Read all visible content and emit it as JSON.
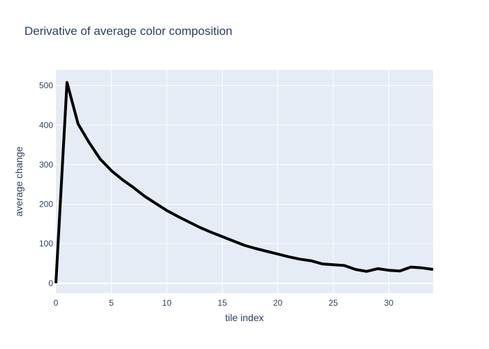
{
  "chart_data": {
    "type": "line",
    "title": "Derivative of average color composition",
    "xlabel": "tile index",
    "ylabel": "average change",
    "xlim": [
      0,
      34
    ],
    "ylim": [
      -25,
      540
    ],
    "x_ticks": [
      0,
      5,
      10,
      15,
      20,
      25,
      30
    ],
    "y_ticks": [
      0,
      100,
      200,
      300,
      400,
      500
    ],
    "grid": true,
    "legend": "none",
    "colors": {
      "plot_bg": "#e5ecf6",
      "grid": "#ffffff",
      "line": "#000000",
      "text": "#2a3f5f"
    },
    "series": [
      {
        "x": [
          0,
          1,
          2,
          3,
          4,
          5,
          6,
          7,
          8,
          9,
          10,
          11,
          12,
          13,
          14,
          15,
          16,
          17,
          18,
          19,
          20,
          21,
          22,
          23,
          24,
          25,
          26,
          27,
          28,
          29,
          30,
          31,
          32,
          33,
          34
        ],
        "values": [
          0,
          508,
          403,
          356,
          314,
          285,
          262,
          242,
          220,
          202,
          184,
          169,
          155,
          141,
          129,
          118,
          107,
          96,
          88,
          81,
          74,
          67,
          61,
          57,
          49,
          47,
          45,
          35,
          30,
          37,
          33,
          31,
          41,
          39,
          35
        ]
      }
    ]
  }
}
